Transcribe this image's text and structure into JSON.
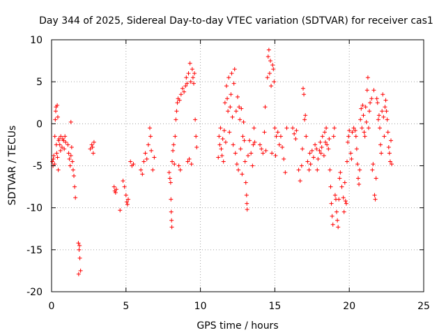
{
  "chart_data": {
    "type": "scatter",
    "title": "Day 344 of 2025, Sidereal Day-to-day VTEC variation (SDTVAR) for receiver cas1",
    "xlabel": "GPS time / hours",
    "ylabel": "SDTVAR / TECUs",
    "xlim": [
      0,
      25
    ],
    "ylim": [
      -20,
      10
    ],
    "xticks": [
      0,
      5,
      10,
      15,
      20,
      25
    ],
    "yticks": [
      -20,
      -15,
      -10,
      -5,
      0,
      5,
      10
    ],
    "grid": true,
    "marker": "+",
    "marker_color": "#ff0000",
    "series": [
      {
        "name": "SDTVAR",
        "points": [
          [
            0.05,
            -4.5
          ],
          [
            0.1,
            -5.0
          ],
          [
            0.12,
            -4.2
          ],
          [
            0.15,
            -3.8
          ],
          [
            0.2,
            -4.8
          ],
          [
            0.22,
            -1.5
          ],
          [
            0.25,
            0.5
          ],
          [
            0.28,
            1.5
          ],
          [
            0.3,
            2.0
          ],
          [
            0.32,
            -2.5
          ],
          [
            0.35,
            -3.5
          ],
          [
            0.38,
            2.2
          ],
          [
            0.4,
            -4.0
          ],
          [
            0.42,
            0.8
          ],
          [
            0.45,
            -5.5
          ],
          [
            0.48,
            -2.0
          ],
          [
            0.5,
            -1.8
          ],
          [
            0.55,
            -2.5
          ],
          [
            0.6,
            -3.2
          ],
          [
            0.62,
            -1.5
          ],
          [
            0.7,
            -2.8
          ],
          [
            0.75,
            -1.8
          ],
          [
            0.8,
            -2.0
          ],
          [
            0.85,
            -3.0
          ],
          [
            0.9,
            -1.5
          ],
          [
            0.95,
            -2.2
          ],
          [
            1.1,
            -2.5
          ],
          [
            1.15,
            -3.5
          ],
          [
            1.2,
            -4.2
          ],
          [
            1.25,
            -5.0
          ],
          [
            1.3,
            -3.8
          ],
          [
            1.35,
            -2.8
          ],
          [
            1.4,
            -4.5
          ],
          [
            1.45,
            -5.5
          ],
          [
            1.5,
            -6.2
          ],
          [
            1.55,
            -7.5
          ],
          [
            1.6,
            -8.8
          ],
          [
            1.3,
            0.2
          ],
          [
            1.8,
            -14.2
          ],
          [
            1.85,
            -15.0
          ],
          [
            1.9,
            -16.0
          ],
          [
            1.95,
            -17.5
          ],
          [
            1.82,
            -17.9
          ],
          [
            1.88,
            -14.5
          ],
          [
            2.6,
            -3.0
          ],
          [
            2.7,
            -2.5
          ],
          [
            2.75,
            -2.8
          ],
          [
            2.8,
            -3.5
          ],
          [
            2.85,
            -2.2
          ],
          [
            4.2,
            -7.5
          ],
          [
            4.25,
            -8.0
          ],
          [
            4.3,
            -8.2
          ],
          [
            4.35,
            -7.8
          ],
          [
            4.6,
            -10.3
          ],
          [
            4.8,
            -6.8
          ],
          [
            4.9,
            -7.5
          ],
          [
            5.0,
            -8.5
          ],
          [
            5.05,
            -9.3
          ],
          [
            5.1,
            -9.6
          ],
          [
            5.15,
            -9.0
          ],
          [
            5.3,
            -4.5
          ],
          [
            5.4,
            -5.0
          ],
          [
            5.5,
            -4.8
          ],
          [
            6.0,
            -5.5
          ],
          [
            6.1,
            -6.0
          ],
          [
            6.2,
            -4.5
          ],
          [
            6.3,
            -3.5
          ],
          [
            6.4,
            -4.2
          ],
          [
            6.5,
            -2.5
          ],
          [
            6.6,
            -0.5
          ],
          [
            6.65,
            -1.5
          ],
          [
            6.7,
            -3.2
          ],
          [
            6.8,
            -5.5
          ],
          [
            6.9,
            -4.0
          ],
          [
            7.9,
            -5.8
          ],
          [
            7.95,
            -6.5
          ],
          [
            8.0,
            -7.0
          ],
          [
            8.02,
            -9.0
          ],
          [
            8.04,
            -10.5
          ],
          [
            8.06,
            -11.5
          ],
          [
            8.08,
            -12.3
          ],
          [
            8.1,
            -4.5
          ],
          [
            8.15,
            -3.2
          ],
          [
            8.2,
            -2.5
          ],
          [
            8.25,
            -4.8
          ],
          [
            8.3,
            -1.5
          ],
          [
            8.35,
            0.5
          ],
          [
            8.4,
            1.5
          ],
          [
            8.45,
            2.5
          ],
          [
            8.5,
            3.0
          ],
          [
            8.55,
            -5.0
          ],
          [
            8.6,
            2.8
          ],
          [
            8.65,
            -5.5
          ],
          [
            8.7,
            3.5
          ],
          [
            8.8,
            4.2
          ],
          [
            8.9,
            3.8
          ],
          [
            9.0,
            4.5
          ],
          [
            9.05,
            5.5
          ],
          [
            9.1,
            4.8
          ],
          [
            9.15,
            -4.5
          ],
          [
            9.2,
            6.0
          ],
          [
            9.25,
            -4.2
          ],
          [
            9.3,
            7.2
          ],
          [
            9.35,
            5.0
          ],
          [
            9.4,
            -4.8
          ],
          [
            9.45,
            6.5
          ],
          [
            9.5,
            5.5
          ],
          [
            9.55,
            4.8
          ],
          [
            9.6,
            6.0
          ],
          [
            9.65,
            0.5
          ],
          [
            9.7,
            -1.5
          ],
          [
            9.75,
            -2.8
          ],
          [
            11.2,
            -4.0
          ],
          [
            11.25,
            -1.5
          ],
          [
            11.3,
            -2.5
          ],
          [
            11.35,
            -0.5
          ],
          [
            11.4,
            -3.0
          ],
          [
            11.45,
            -3.8
          ],
          [
            11.5,
            -1.8
          ],
          [
            11.55,
            -4.5
          ],
          [
            11.6,
            -0.8
          ],
          [
            11.65,
            2.5
          ],
          [
            11.7,
            -2.2
          ],
          [
            11.75,
            4.5
          ],
          [
            11.8,
            3.0
          ],
          [
            11.85,
            1.5
          ],
          [
            11.9,
            5.5
          ],
          [
            11.95,
            -1.0
          ],
          [
            12.0,
            2.0
          ],
          [
            12.05,
            3.5
          ],
          [
            12.1,
            6.0
          ],
          [
            12.15,
            0.8
          ],
          [
            12.2,
            -2.5
          ],
          [
            12.25,
            4.8
          ],
          [
            12.3,
            6.5
          ],
          [
            12.35,
            -3.5
          ],
          [
            12.4,
            1.5
          ],
          [
            12.45,
            -4.8
          ],
          [
            12.5,
            3.2
          ],
          [
            12.55,
            -5.5
          ],
          [
            12.6,
            2.0
          ],
          [
            12.65,
            0.5
          ],
          [
            12.7,
            -3.0
          ],
          [
            12.75,
            1.8
          ],
          [
            12.8,
            -6.0
          ],
          [
            12.85,
            -1.5
          ],
          [
            12.9,
            0.2
          ],
          [
            12.95,
            -2.0
          ],
          [
            13.0,
            -4.5
          ],
          [
            13.05,
            -7.0
          ],
          [
            13.1,
            -8.5
          ],
          [
            13.12,
            -9.5
          ],
          [
            13.14,
            -10.2
          ],
          [
            13.2,
            -3.8
          ],
          [
            13.3,
            -2.0
          ],
          [
            13.4,
            -3.5
          ],
          [
            13.5,
            -5.0
          ],
          [
            13.55,
            -2.5
          ],
          [
            13.65,
            -2.2
          ],
          [
            13.6,
            -0.5
          ],
          [
            14.0,
            -2.5
          ],
          [
            14.1,
            -3.0
          ],
          [
            14.2,
            -3.5
          ],
          [
            14.3,
            -1.0
          ],
          [
            14.35,
            2.0
          ],
          [
            14.4,
            -3.2
          ],
          [
            14.5,
            5.5
          ],
          [
            14.55,
            8.0
          ],
          [
            14.6,
            8.8
          ],
          [
            14.65,
            6.0
          ],
          [
            14.7,
            7.5
          ],
          [
            14.75,
            4.5
          ],
          [
            14.8,
            -3.5
          ],
          [
            14.85,
            7.0
          ],
          [
            14.9,
            6.5
          ],
          [
            14.95,
            5.0
          ],
          [
            15.0,
            -0.5
          ],
          [
            15.05,
            -3.8
          ],
          [
            15.1,
            -1.5
          ],
          [
            15.2,
            -1.0
          ],
          [
            15.3,
            -2.5
          ],
          [
            15.4,
            -1.5
          ],
          [
            15.5,
            -2.8
          ],
          [
            15.6,
            -4.2
          ],
          [
            15.7,
            -5.8
          ],
          [
            15.8,
            -0.5
          ],
          [
            16.2,
            -0.5
          ],
          [
            16.3,
            -1.2
          ],
          [
            16.4,
            -1.8
          ],
          [
            16.45,
            -0.8
          ],
          [
            16.6,
            -5.5
          ],
          [
            16.7,
            -6.8
          ],
          [
            16.8,
            -5.0
          ],
          [
            16.85,
            -3.0
          ],
          [
            16.9,
            4.2
          ],
          [
            16.95,
            3.5
          ],
          [
            17.0,
            0.5
          ],
          [
            17.05,
            1.0
          ],
          [
            17.1,
            -1.5
          ],
          [
            17.2,
            -4.5
          ],
          [
            17.3,
            -5.5
          ],
          [
            17.35,
            -3.5
          ],
          [
            17.4,
            -4.8
          ],
          [
            17.5,
            -3.2
          ],
          [
            17.6,
            -4.0
          ],
          [
            17.7,
            -2.5
          ],
          [
            17.8,
            -3.0
          ],
          [
            17.85,
            -5.5
          ],
          [
            17.9,
            -4.2
          ],
          [
            18.0,
            -3.2
          ],
          [
            18.05,
            -2.2
          ],
          [
            18.1,
            -3.5
          ],
          [
            18.15,
            -2.8
          ],
          [
            18.2,
            -1.5
          ],
          [
            18.3,
            -3.8
          ],
          [
            18.35,
            -1.0
          ],
          [
            18.4,
            -2.2
          ],
          [
            18.45,
            -0.5
          ],
          [
            18.5,
            -2.5
          ],
          [
            18.6,
            -3.0
          ],
          [
            18.65,
            -1.8
          ],
          [
            18.7,
            -5.5
          ],
          [
            18.75,
            -7.5
          ],
          [
            18.8,
            -9.5
          ],
          [
            18.85,
            -11.0
          ],
          [
            18.9,
            -12.0
          ],
          [
            18.95,
            -1.5
          ],
          [
            19.0,
            -0.5
          ],
          [
            19.05,
            -8.5
          ],
          [
            19.1,
            -9.0
          ],
          [
            19.15,
            -10.5
          ],
          [
            19.2,
            -11.5
          ],
          [
            19.25,
            -12.3
          ],
          [
            19.3,
            -9.0
          ],
          [
            19.35,
            -6.5
          ],
          [
            19.4,
            -5.8
          ],
          [
            19.5,
            -7.5
          ],
          [
            19.6,
            -8.8
          ],
          [
            19.65,
            -10.5
          ],
          [
            19.7,
            -7.0
          ],
          [
            19.75,
            -9.2
          ],
          [
            19.8,
            -9.5
          ],
          [
            19.85,
            -4.5
          ],
          [
            19.9,
            -2.2
          ],
          [
            19.95,
            -1.5
          ],
          [
            20.0,
            -0.8
          ],
          [
            20.1,
            -3.5
          ],
          [
            20.15,
            -4.2
          ],
          [
            20.2,
            -1.0
          ],
          [
            20.3,
            -0.5
          ],
          [
            20.4,
            -0.8
          ],
          [
            20.45,
            -1.5
          ],
          [
            20.5,
            -3.0
          ],
          [
            20.55,
            -4.8
          ],
          [
            20.6,
            -6.5
          ],
          [
            20.65,
            -7.2
          ],
          [
            20.7,
            -5.5
          ],
          [
            20.75,
            0.5
          ],
          [
            20.8,
            1.8
          ],
          [
            20.85,
            -0.5
          ],
          [
            20.9,
            2.2
          ],
          [
            20.95,
            1.0
          ],
          [
            21.0,
            -1.0
          ],
          [
            21.05,
            -1.5
          ],
          [
            21.1,
            2.0
          ],
          [
            21.15,
            0.2
          ],
          [
            21.2,
            4.0
          ],
          [
            21.25,
            5.5
          ],
          [
            21.3,
            -0.5
          ],
          [
            21.35,
            1.5
          ],
          [
            21.4,
            2.5
          ],
          [
            21.5,
            3.0
          ],
          [
            21.55,
            -5.5
          ],
          [
            21.6,
            -4.8
          ],
          [
            21.65,
            4.0
          ],
          [
            21.7,
            -8.5
          ],
          [
            21.75,
            -9.0
          ],
          [
            21.8,
            -6.5
          ],
          [
            21.85,
            3.0
          ],
          [
            21.9,
            2.5
          ],
          [
            21.95,
            0.5
          ],
          [
            22.0,
            1.0
          ],
          [
            22.05,
            -0.5
          ],
          [
            22.1,
            -2.5
          ],
          [
            22.15,
            -3.5
          ],
          [
            22.2,
            1.5
          ],
          [
            22.25,
            3.5
          ],
          [
            22.3,
            0.8
          ],
          [
            22.35,
            -1.5
          ],
          [
            22.4,
            2.0
          ],
          [
            22.45,
            2.8
          ],
          [
            22.5,
            1.5
          ],
          [
            22.55,
            0.5
          ],
          [
            22.6,
            -1.0
          ],
          [
            22.65,
            -2.8
          ],
          [
            22.7,
            -3.5
          ],
          [
            22.75,
            -4.5
          ],
          [
            22.8,
            -2.0
          ],
          [
            22.85,
            -4.8
          ]
        ]
      }
    ]
  }
}
